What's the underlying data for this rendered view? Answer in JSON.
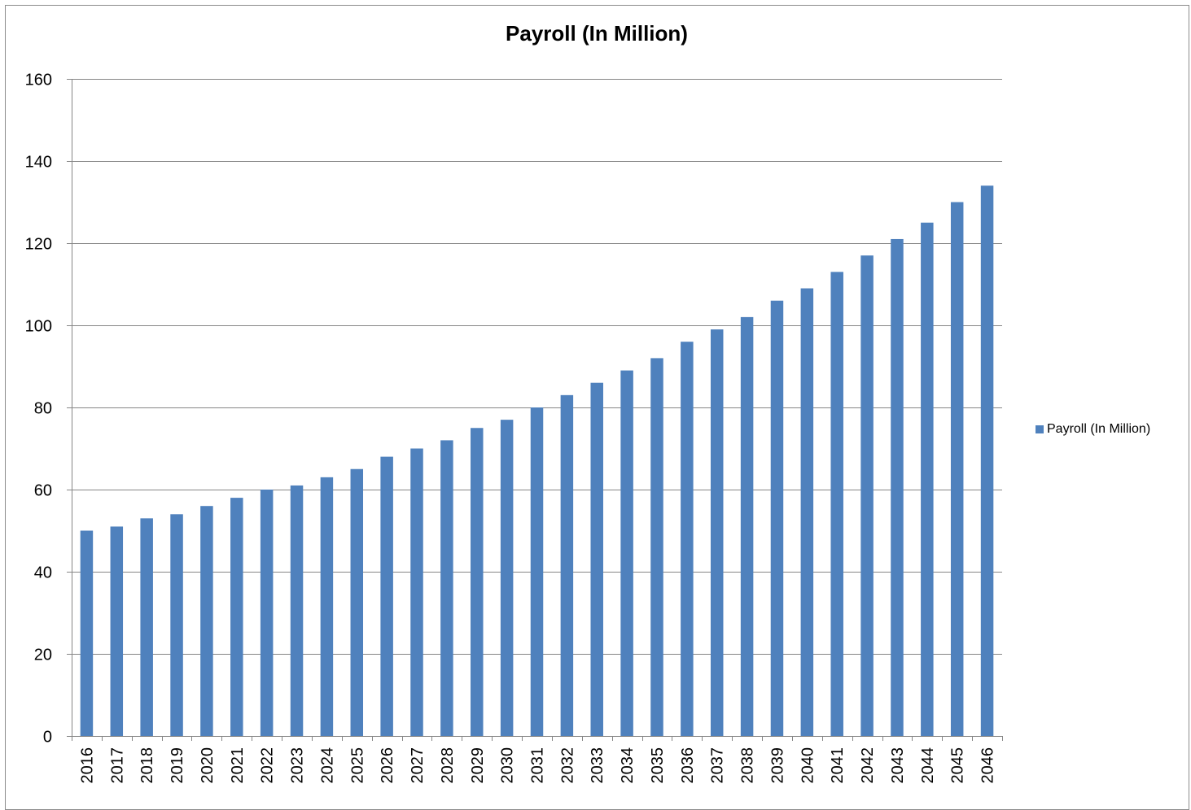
{
  "chart_data": {
    "type": "bar",
    "title": "Payroll (In Million)",
    "xlabel": "",
    "ylabel": "",
    "ylim": [
      0,
      160
    ],
    "y_ticks": [
      "0",
      "20",
      "40",
      "60",
      "80",
      "100",
      "120",
      "140",
      "160"
    ],
    "grid": true,
    "legend_position": "right",
    "categories": [
      "2016",
      "2017",
      "2018",
      "2019",
      "2020",
      "2021",
      "2022",
      "2023",
      "2024",
      "2025",
      "2026",
      "2027",
      "2028",
      "2029",
      "2030",
      "2031",
      "2032",
      "2033",
      "2034",
      "2035",
      "2036",
      "2037",
      "2038",
      "2039",
      "2040",
      "2041",
      "2042",
      "2043",
      "2044",
      "2045",
      "2046"
    ],
    "series": [
      {
        "name": "Payroll (In Million)",
        "color": "#4f81bd",
        "values": [
          50,
          51,
          53,
          54,
          56,
          58,
          60,
          61,
          63,
          65,
          68,
          70,
          72,
          75,
          77,
          80,
          83,
          86,
          89,
          92,
          96,
          99,
          102,
          106,
          109,
          113,
          117,
          121,
          125,
          130,
          134
        ]
      }
    ]
  }
}
